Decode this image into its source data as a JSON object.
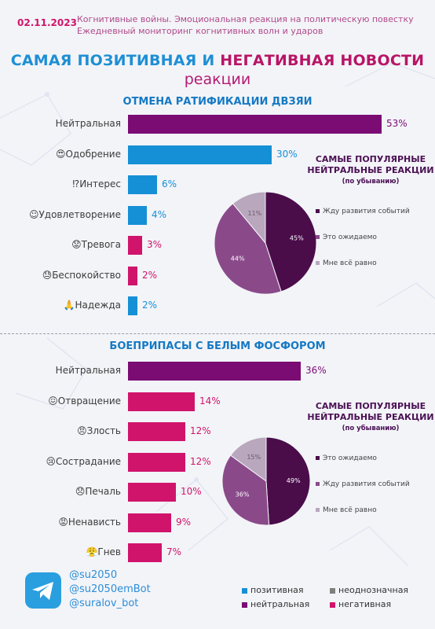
{
  "header": {
    "date": "02.11.2023",
    "subtitle1": "Когнитивные войны. Эмоциональная реакция на политическую повестку",
    "subtitle2": "Ежедневный мониторинг когнитивных волн и ударов"
  },
  "title": {
    "part1": "САМАЯ ",
    "positive": "ПОЗИТИВНАЯ",
    "mid": " И ",
    "negative": "НЕГАТИВНАЯ",
    "part2": " НОВОСТИ",
    "line2": "реакции"
  },
  "colors": {
    "positive": "#1590d6",
    "neutral": "#7a0c74",
    "negative": "#d0146b",
    "ambiguous": "#7f7f7f"
  },
  "chart_data": [
    {
      "type": "bar",
      "title": "ОТМЕНА РАТИФИКАЦИИ ДВЗЯИ",
      "categories": [
        {
          "label": "Нейтральная",
          "value": 53,
          "text": "53%",
          "color": "#7a0c74",
          "icon": ""
        },
        {
          "label": "Одобрение",
          "value": 30,
          "text": "30%",
          "color": "#1590d6",
          "icon": "😍"
        },
        {
          "label": "Интерес",
          "value": 6,
          "text": "6%",
          "color": "#1590d6",
          "icon": "⁉"
        },
        {
          "label": "Удовлетворение",
          "value": 4,
          "text": "4%",
          "color": "#1590d6",
          "icon": "☺"
        },
        {
          "label": "Тревога",
          "value": 3,
          "text": "3%",
          "color": "#d0146b",
          "icon": "😟"
        },
        {
          "label": "Беспокойство",
          "value": 2,
          "text": "2%",
          "color": "#d0146b",
          "icon": "😓"
        },
        {
          "label": "Надежда",
          "value": 2,
          "text": "2%",
          "color": "#1590d6",
          "icon": "🙏"
        }
      ]
    },
    {
      "type": "pie",
      "title": "САМЫЕ ПОПУЛЯРНЫЕ",
      "title2": "НЕЙТРАЛЬНЫЕ РЕАКЦИИ",
      "title3": "(по убыванию)",
      "slices": [
        {
          "label": "Жду развития событий",
          "value": 45,
          "text": "45%",
          "color": "#4a0d4a"
        },
        {
          "label": "Это ожидаемо",
          "value": 44,
          "text": "44%",
          "color": "#8a4a8a"
        },
        {
          "label": "Мне всё равно",
          "value": 11,
          "text": "11%",
          "color": "#b9a7be"
        }
      ]
    },
    {
      "type": "bar",
      "title": "БОЕПРИПАСЫ С БЕЛЫМ ФОСФОРОМ",
      "categories": [
        {
          "label": "Нейтральная",
          "value": 36,
          "text": "36%",
          "color": "#7a0c74",
          "icon": ""
        },
        {
          "label": "Отвращение",
          "value": 14,
          "text": "14%",
          "color": "#d0146b",
          "icon": "😖"
        },
        {
          "label": "Злость",
          "value": 12,
          "text": "12%",
          "color": "#d0146b",
          "icon": "😠"
        },
        {
          "label": "Сострадание",
          "value": 12,
          "text": "12%",
          "color": "#d0146b",
          "icon": "😢"
        },
        {
          "label": "Печаль",
          "value": 10,
          "text": "10%",
          "color": "#d0146b",
          "icon": "😞"
        },
        {
          "label": "Ненависть",
          "value": 9,
          "text": "9%",
          "color": "#d0146b",
          "icon": "😡"
        },
        {
          "label": "Гнев",
          "value": 7,
          "text": "7%",
          "color": "#d0146b",
          "icon": "😤"
        }
      ]
    },
    {
      "type": "pie",
      "title": "САМЫЕ ПОПУЛЯРНЫЕ",
      "title2": "НЕЙТРАЛЬНЫЕ РЕАКЦИИ",
      "title3": "(по убыванию)",
      "slices": [
        {
          "label": "Это ожидаемо",
          "value": 49,
          "text": "49%",
          "color": "#4a0d4a"
        },
        {
          "label": "Жду развития событий",
          "value": 36,
          "text": "36%",
          "color": "#8a4a8a"
        },
        {
          "label": "Мне всё равно",
          "value": 15,
          "text": "15%",
          "color": "#b9a7be"
        }
      ]
    }
  ],
  "footer": {
    "telegram_icon": "telegram-icon",
    "handles": [
      "@su2050",
      "@su2050emBot",
      "@suralov_bot"
    ],
    "legend": [
      {
        "label": "позитивная",
        "color": "#1590d6"
      },
      {
        "label": "неоднозначная",
        "color": "#7f7f7f"
      },
      {
        "label": "нейтральная",
        "color": "#7a0c74"
      },
      {
        "label": "негативная",
        "color": "#d0146b"
      }
    ]
  }
}
